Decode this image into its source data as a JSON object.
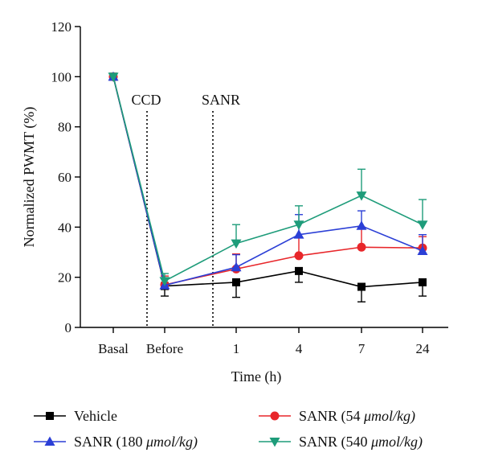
{
  "chart_data": {
    "type": "line",
    "title": "",
    "xlabel": "Time (h)",
    "ylabel": "Normalized PWMT (%)",
    "ylim": [
      0,
      120
    ],
    "yticks": [
      0,
      20,
      40,
      60,
      80,
      100,
      120
    ],
    "categories": [
      "Basal",
      "Before",
      "1",
      "4",
      "7",
      "24"
    ],
    "annotations": [
      {
        "text": "CCD",
        "between": [
          "Basal",
          "Before"
        ]
      },
      {
        "text": "SANR",
        "between": [
          "Before",
          "1"
        ]
      }
    ],
    "series": [
      {
        "name": "Vehicle",
        "color": "#000000",
        "marker": "square",
        "values": [
          100,
          16.5,
          18,
          22.5,
          16.2,
          18
        ],
        "errors": [
          0,
          4,
          6,
          4.5,
          6,
          5.5
        ],
        "error_dir": "down"
      },
      {
        "name": "SANR (54 μmol/kg)",
        "color": "#e8262a",
        "marker": "circle",
        "values": [
          100,
          17,
          23.3,
          28.6,
          32,
          31.7
        ],
        "errors": [
          0,
          3.5,
          6,
          7.5,
          8,
          4.5
        ],
        "error_dir": "up"
      },
      {
        "name": "SANR (180 μmol/kg)",
        "color": "#2b3fd6",
        "marker": "triangle-up",
        "values": [
          100,
          16.8,
          24,
          37,
          40.5,
          30.5
        ],
        "errors": [
          0,
          3,
          5,
          8,
          6,
          6.5
        ],
        "error_dir": "up"
      },
      {
        "name": "SANR (540 μmol/kg)",
        "color": "#1e9c7a",
        "marker": "triangle-down",
        "values": [
          100,
          18.5,
          33.5,
          41,
          52.6,
          41
        ],
        "errors": [
          0,
          3,
          7.5,
          7.5,
          10.5,
          10
        ],
        "error_dir": "up"
      }
    ],
    "legend": {
      "placement": "bottom",
      "entries": [
        {
          "label_main": "Vehicle",
          "label_unit": ""
        },
        {
          "label_main": "SANR (54 ",
          "label_unit": "μmol/kg)"
        },
        {
          "label_main": "SANR (180 ",
          "label_unit": "μmol/kg)"
        },
        {
          "label_main": "SANR (540 ",
          "label_unit": "μmol/kg)"
        }
      ]
    }
  }
}
